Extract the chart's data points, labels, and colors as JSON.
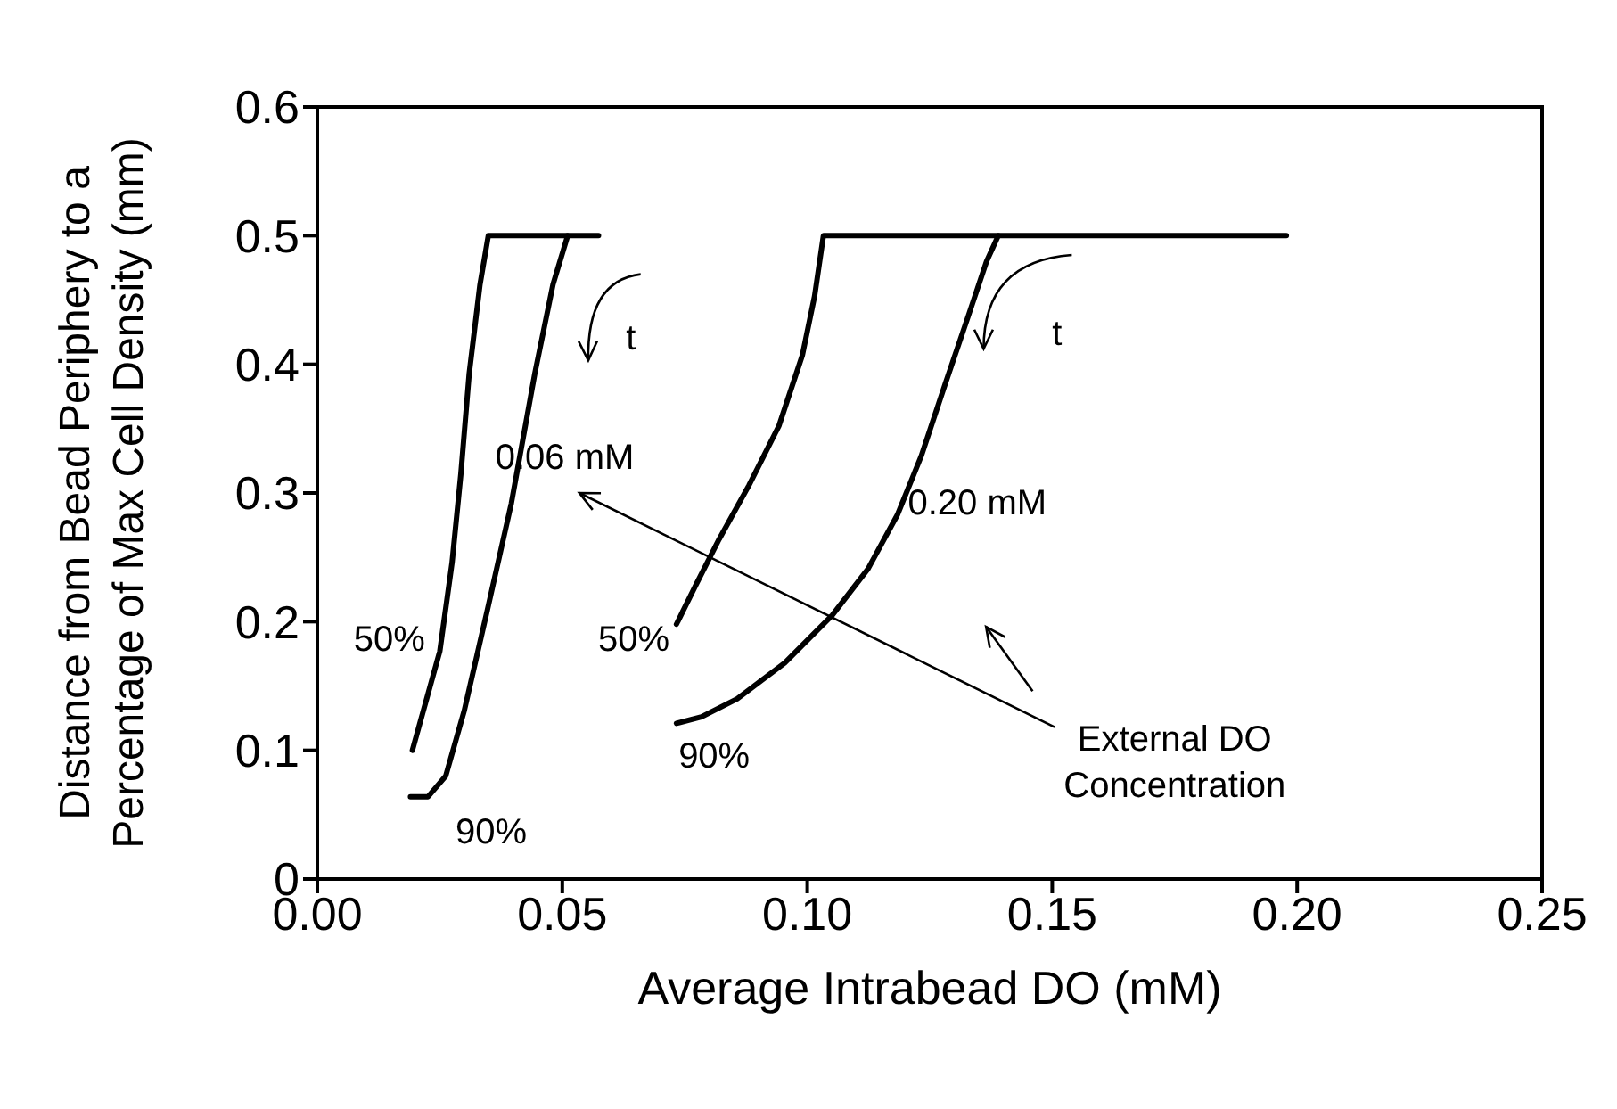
{
  "chart_data": {
    "type": "line",
    "xlabel": "Average Intrabead DO (mM)",
    "ylabel": "Distance from Bead Periphery to a Percentage of Max Cell Density (mm)",
    "xlim": [
      0,
      0.25
    ],
    "xticks": [
      {
        "value": 0,
        "label": "0.00"
      },
      {
        "value": 0.05,
        "label": "0.05"
      },
      {
        "value": 0.1,
        "label": "0.10"
      },
      {
        "value": 0.15,
        "label": "0.15"
      },
      {
        "value": 0.2,
        "label": "0.20"
      },
      {
        "value": 0.25,
        "label": "0.25"
      }
    ],
    "ylim": [
      0,
      0.6
    ],
    "yticks": [
      0,
      0.1,
      0.2,
      0.3,
      0.4,
      0.5,
      0.6
    ],
    "marker": "none",
    "line_style": "solid",
    "series": [
      {
        "color": "#000000",
        "x": [
          0.0194,
          0.025,
          0.0275,
          0.0293,
          0.031,
          0.0332,
          0.0349,
          0.0574
        ],
        "values": [
          0.1,
          0.177,
          0.246,
          0.315,
          0.393,
          0.462,
          0.5,
          0.5
        ]
      },
      {
        "color": "#000000",
        "x": [
          0.019,
          0.0226,
          0.0262,
          0.03,
          0.0347,
          0.0396,
          0.0444,
          0.0481,
          0.0511
        ],
        "values": [
          0.064,
          0.064,
          0.08,
          0.131,
          0.209,
          0.292,
          0.393,
          0.462,
          0.5
        ]
      },
      {
        "color": "#000000",
        "x": [
          0.0733,
          0.0772,
          0.082,
          0.0881,
          0.0942,
          0.099,
          0.1015,
          0.1033,
          0.1978
        ],
        "values": [
          0.198,
          0.228,
          0.264,
          0.306,
          0.352,
          0.407,
          0.453,
          0.5,
          0.5
        ]
      },
      {
        "color": "#000000",
        "x": [
          0.0733,
          0.0784,
          0.0857,
          0.0954,
          0.1051,
          0.1124,
          0.1184,
          0.1233,
          0.1281,
          0.133,
          0.1366,
          0.139
        ],
        "values": [
          0.121,
          0.126,
          0.14,
          0.168,
          0.205,
          0.241,
          0.283,
          0.329,
          0.384,
          0.439,
          0.48,
          0.5
        ]
      }
    ],
    "annotations": [
      "50%",
      "90%",
      "50%",
      "90%",
      "0.06 mM",
      "0.20 mM",
      "t",
      "t",
      "External DO\nConcentration"
    ]
  }
}
